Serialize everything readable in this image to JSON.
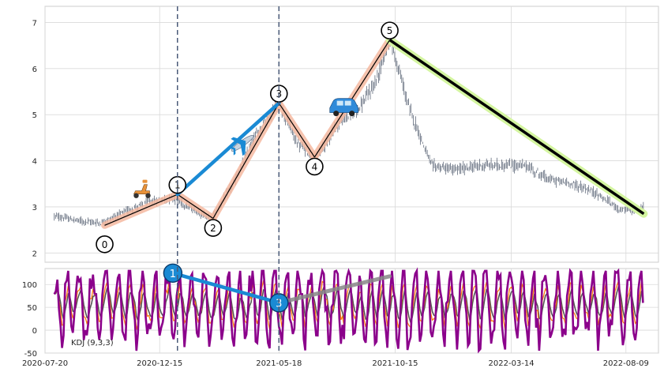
{
  "chart_data": [
    {
      "type": "candlestick",
      "panel": "price",
      "xlim": [
        "2020-07-20",
        "2022-09-20"
      ],
      "ylim": [
        1.8,
        7.35
      ],
      "y_ticks": [
        2,
        3,
        4,
        5,
        6,
        7
      ],
      "grid": true,
      "price_path": [
        [
          "2020-08-01",
          2.8
        ],
        [
          "2020-09-01",
          2.7
        ],
        [
          "2020-10-01",
          2.65
        ],
        [
          "2020-11-01",
          2.9
        ],
        [
          "2020-12-01",
          3.1
        ],
        [
          "2021-01-01",
          3.2
        ],
        [
          "2021-02-01",
          2.9
        ],
        [
          "2021-02-20",
          2.75
        ],
        [
          "2021-03-20",
          3.5
        ],
        [
          "2021-04-20",
          4.6
        ],
        [
          "2021-05-18",
          5.25
        ],
        [
          "2021-06-10",
          4.4
        ],
        [
          "2021-07-05",
          4.05
        ],
        [
          "2021-08-01",
          4.8
        ],
        [
          "2021-09-01",
          5.2
        ],
        [
          "2021-09-20",
          5.7
        ],
        [
          "2021-10-08",
          6.7
        ],
        [
          "2021-11-01",
          5.2
        ],
        [
          "2021-12-01",
          3.9
        ],
        [
          "2022-01-01",
          3.8
        ],
        [
          "2022-02-01",
          3.9
        ],
        [
          "2022-03-01",
          3.9
        ],
        [
          "2022-04-01",
          3.9
        ],
        [
          "2022-05-01",
          3.6
        ],
        [
          "2022-06-01",
          3.5
        ],
        [
          "2022-07-01",
          3.3
        ],
        [
          "2022-08-01",
          2.95
        ],
        [
          "2022-08-20",
          2.9
        ],
        [
          "2022-09-01",
          3.0
        ]
      ],
      "waves": [
        {
          "label": "0",
          "date": "2020-10-05",
          "price": 2.6
        },
        {
          "label": "1",
          "date": "2021-01-07",
          "price": 3.27
        },
        {
          "label": "2",
          "date": "2021-02-22",
          "price": 2.75
        },
        {
          "label": "3",
          "date": "2021-05-18",
          "price": 5.25
        },
        {
          "label": "4",
          "date": "2021-07-03",
          "price": 4.08
        },
        {
          "label": "5",
          "date": "2021-10-08",
          "price": 6.62
        },
        {
          "label": "",
          "date": "2022-09-01",
          "price": 2.85
        }
      ],
      "vlines": [
        "2021-01-07",
        "2021-05-18"
      ],
      "icons": [
        "scooter-icon",
        "airplane-icon",
        "car-icon"
      ],
      "colors": {
        "candle": "#4a5568",
        "wave_fill": "#f4b8a0",
        "wave_line": "#000000",
        "blue_line": "#1a8ad4",
        "green_glow": "#d4f5a0",
        "vline": "#4a5a78"
      }
    },
    {
      "type": "line",
      "panel": "kdj",
      "label": "KDJ (9,3,3)",
      "ylim": [
        -50,
        135
      ],
      "y_ticks": [
        -50,
        0,
        50,
        100
      ],
      "x_ticks": [
        "2020-07-20",
        "2020-12-15",
        "2021-05-18",
        "2021-10-15",
        "2022-03-14",
        "2022-08-09"
      ],
      "markers": [
        {
          "label": "1",
          "date": "2021-01-01",
          "value": 125
        },
        {
          "label": "3",
          "date": "2021-05-18",
          "value": 60
        }
      ],
      "colors": {
        "k": "#ff7f0e",
        "d": "#555555",
        "j": "#8b008b",
        "marker": "#1a8ad4",
        "gray_line": "#888888"
      }
    }
  ]
}
